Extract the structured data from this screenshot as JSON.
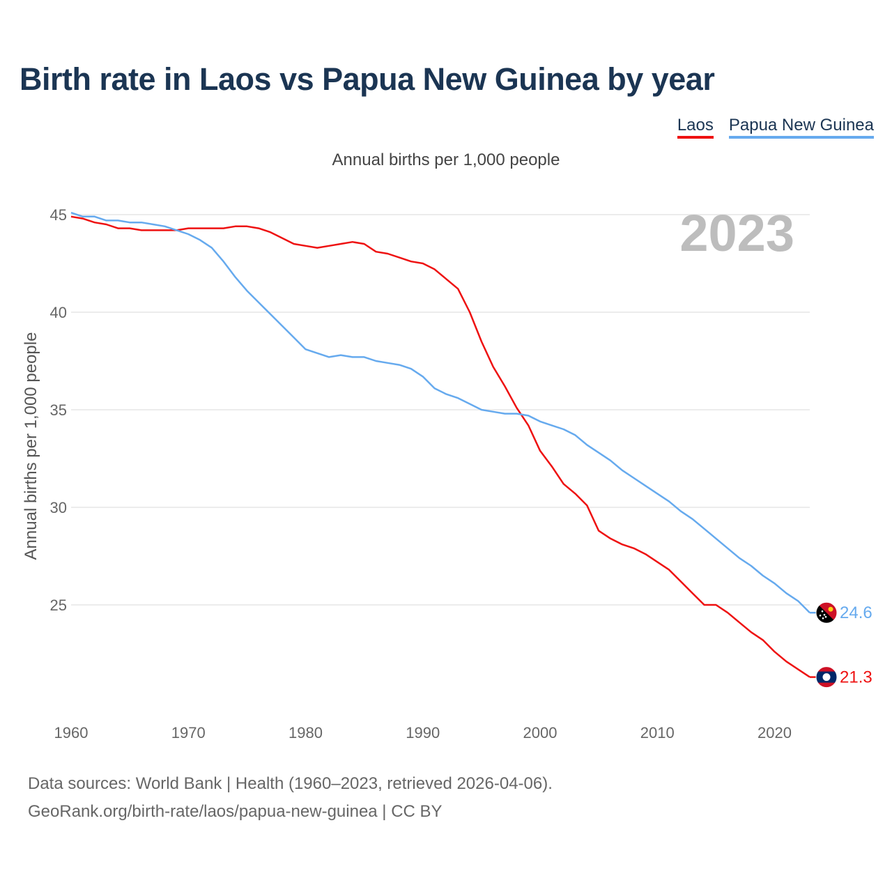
{
  "title": "Birth rate in Laos vs Papua New Guinea by year",
  "subtitle": "Annual births per 1,000 people",
  "year_watermark": "2023",
  "legend": [
    {
      "label": "Laos",
      "color": "#ee1111"
    },
    {
      "label": "Papua New Guinea",
      "color": "#66aaee"
    }
  ],
  "chart_data": {
    "type": "line",
    "title": "Birth rate in Laos vs Papua New Guinea by year",
    "subtitle": "Annual births per 1,000 people",
    "xlabel": "",
    "ylabel": "Annual births per 1,000 people",
    "xlim": [
      1960,
      2023
    ],
    "ylim": [
      20,
      46
    ],
    "xticks": [
      1960,
      1970,
      1980,
      1990,
      2000,
      2010,
      2020
    ],
    "yticks": [
      25,
      30,
      35,
      40,
      45
    ],
    "grid": true,
    "x": [
      1960,
      1961,
      1962,
      1963,
      1964,
      1965,
      1966,
      1967,
      1968,
      1969,
      1970,
      1971,
      1972,
      1973,
      1974,
      1975,
      1976,
      1977,
      1978,
      1979,
      1980,
      1981,
      1982,
      1983,
      1984,
      1985,
      1986,
      1987,
      1988,
      1989,
      1990,
      1991,
      1992,
      1993,
      1994,
      1995,
      1996,
      1997,
      1998,
      1999,
      2000,
      2001,
      2002,
      2003,
      2004,
      2005,
      2006,
      2007,
      2008,
      2009,
      2010,
      2011,
      2012,
      2013,
      2014,
      2015,
      2016,
      2017,
      2018,
      2019,
      2020,
      2021,
      2022,
      2023
    ],
    "series": [
      {
        "name": "Laos",
        "color": "#ee1111",
        "end_label": "21.3",
        "flag": "laos-flag",
        "values": [
          44.9,
          44.8,
          44.6,
          44.5,
          44.3,
          44.3,
          44.2,
          44.2,
          44.2,
          44.2,
          44.3,
          44.3,
          44.3,
          44.3,
          44.4,
          44.4,
          44.3,
          44.1,
          43.8,
          43.5,
          43.4,
          43.3,
          43.4,
          43.5,
          43.6,
          43.5,
          43.1,
          43.0,
          42.8,
          42.6,
          42.5,
          42.2,
          41.7,
          41.2,
          40.0,
          38.5,
          37.2,
          36.2,
          35.1,
          34.2,
          32.9,
          32.1,
          31.2,
          30.7,
          30.1,
          28.8,
          28.4,
          28.1,
          27.9,
          27.6,
          27.2,
          26.8,
          26.2,
          25.6,
          25.0,
          25.0,
          24.6,
          24.1,
          23.6,
          23.2,
          22.6,
          22.1,
          21.7,
          21.3
        ]
      },
      {
        "name": "Papua New Guinea",
        "color": "#66aaee",
        "end_label": "24.6",
        "flag": "png-flag",
        "values": [
          45.1,
          44.9,
          44.9,
          44.7,
          44.7,
          44.6,
          44.6,
          44.5,
          44.4,
          44.2,
          44.0,
          43.7,
          43.3,
          42.6,
          41.8,
          41.1,
          40.5,
          39.9,
          39.3,
          38.7,
          38.1,
          37.9,
          37.7,
          37.8,
          37.7,
          37.7,
          37.5,
          37.4,
          37.3,
          37.1,
          36.7,
          36.1,
          35.8,
          35.6,
          35.3,
          35.0,
          34.9,
          34.8,
          34.8,
          34.7,
          34.4,
          34.2,
          34.0,
          33.7,
          33.2,
          32.8,
          32.4,
          31.9,
          31.5,
          31.1,
          30.7,
          30.3,
          29.8,
          29.4,
          28.9,
          28.4,
          27.9,
          27.4,
          27.0,
          26.5,
          26.1,
          25.6,
          25.2,
          24.6
        ]
      }
    ]
  },
  "source_lines": [
    "Data sources: World Bank | Health (1960–2023, retrieved 2026-04-06).",
    "GeoRank.org/birth-rate/laos/papua-new-guinea | CC BY"
  ]
}
